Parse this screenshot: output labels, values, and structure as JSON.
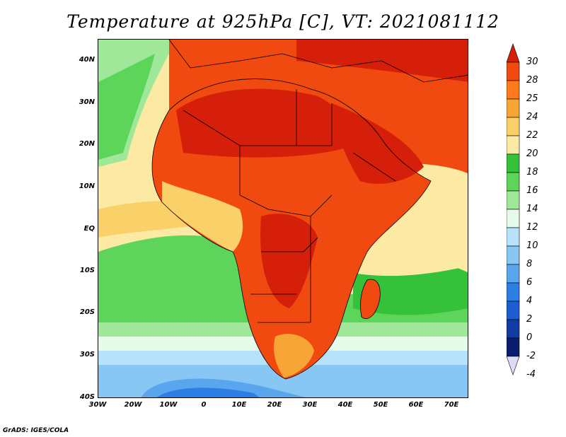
{
  "title": "Temperature at 925hPa [C], VT: 2021081112",
  "footer": "GrADS: IGES/COLA",
  "map": {
    "region": "Africa",
    "lon_range": [
      -30,
      75
    ],
    "lat_range": [
      -40,
      45
    ],
    "lon_ticks": [
      "30W",
      "20W",
      "10W",
      "0",
      "10E",
      "20E",
      "30E",
      "40E",
      "50E",
      "60E",
      "70E"
    ],
    "lat_ticks": [
      "40N",
      "30N",
      "20N",
      "10N",
      "EQ",
      "10S",
      "20S",
      "30S",
      "40S"
    ]
  },
  "colorbar": {
    "labels": [
      "30",
      "28",
      "25",
      "24",
      "22",
      "20",
      "18",
      "16",
      "14",
      "12",
      "10",
      "8",
      "6",
      "4",
      "2",
      "0",
      "-2",
      "-4"
    ],
    "colors": [
      "#d51f0a",
      "#f04a10",
      "#ff7a1a",
      "#f7a636",
      "#fad169",
      "#fbe9a4",
      "#36c13a",
      "#5dd45a",
      "#a0e899",
      "#e6fbe9",
      "#b6e3fb",
      "#88c6f4",
      "#5aa6ee",
      "#2d7ee3",
      "#1c5ed0",
      "#113ba3",
      "#0a1d6e",
      "#dcdcf7"
    ]
  },
  "legend_meta": {
    "units": "C",
    "level": "925hPa",
    "valid_time": "2021081112"
  }
}
